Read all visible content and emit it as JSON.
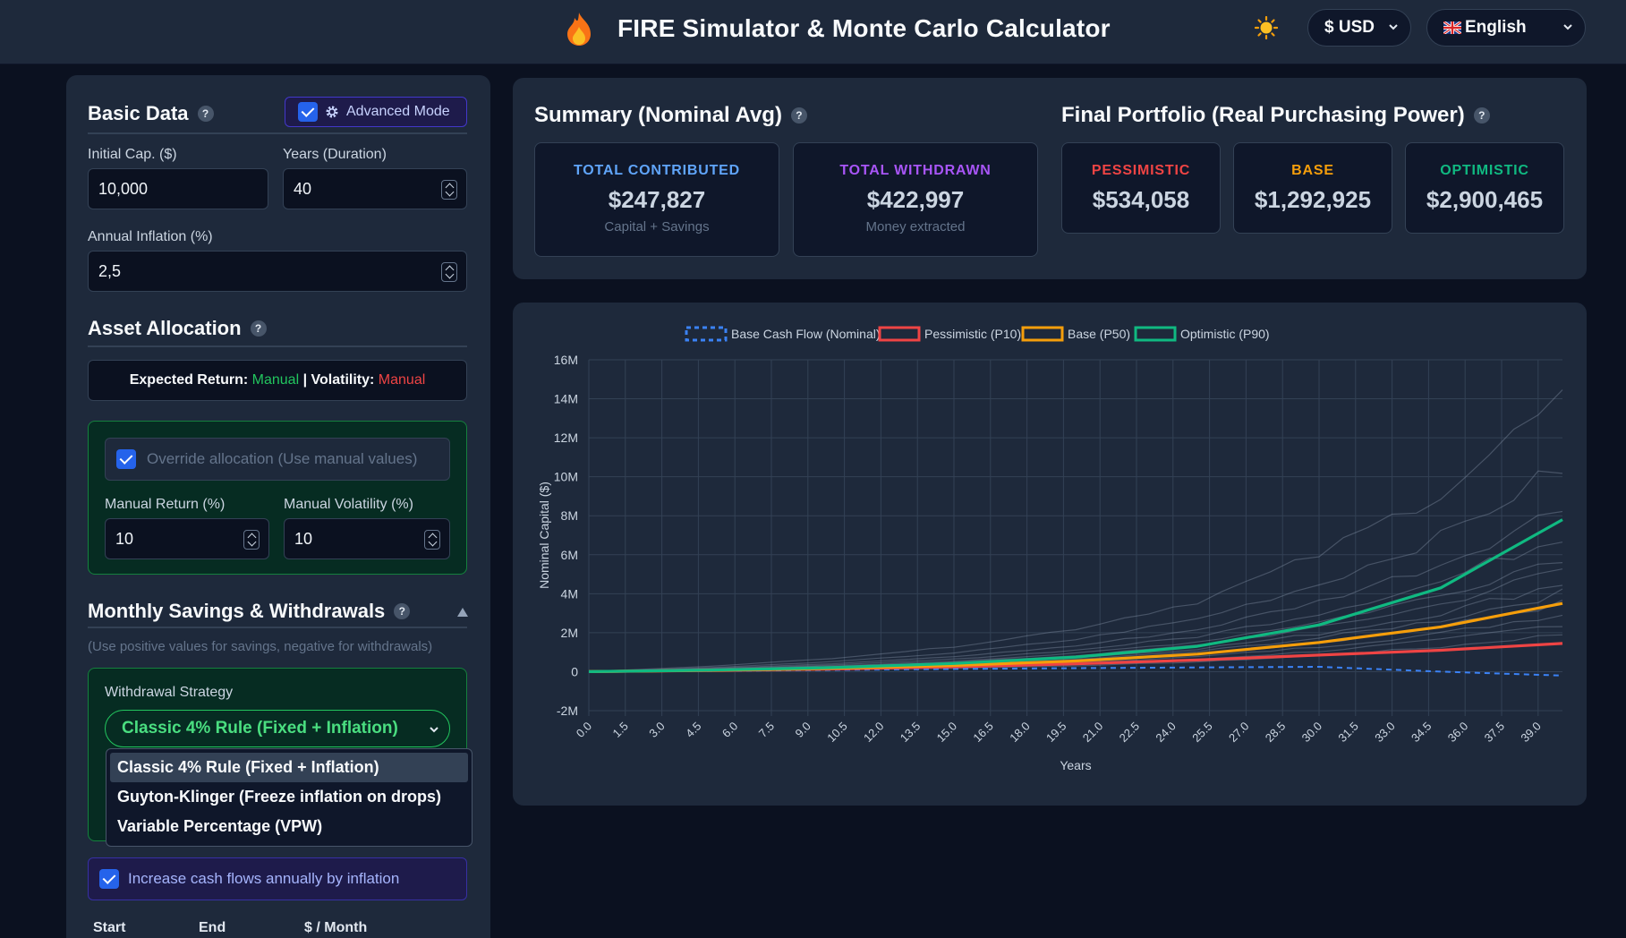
{
  "header": {
    "title": "FIRE Simulator & Monte Carlo Calculator",
    "currency": "$ USD",
    "language": "English"
  },
  "basic": {
    "title": "Basic Data",
    "advanced_label": "Advanced Mode",
    "initial_cap_label": "Initial Cap. ($)",
    "initial_cap_value": "10,000",
    "years_label": "Years (Duration)",
    "years_value": "40",
    "inflation_label": "Annual Inflation (%)",
    "inflation_value": "2,5"
  },
  "allocation": {
    "title": "Asset Allocation",
    "expected_return_label": "Expected Return:",
    "expected_return_value": "Manual",
    "volatility_label": "Volatility:",
    "volatility_value": "Manual",
    "separator": "|",
    "override_label": "Override allocation (Use manual values)",
    "manual_return_label": "Manual Return (%)",
    "manual_return_value": "10",
    "manual_volatility_label": "Manual Volatility (%)",
    "manual_volatility_value": "10"
  },
  "savings": {
    "title": "Monthly Savings & Withdrawals",
    "hint": "(Use positive values for savings, negative for withdrawals)",
    "strategy_label": "Withdrawal Strategy",
    "strategy_selected": "Classic 4% Rule (Fixed + Inflation)",
    "strategy_options": [
      "Classic 4% Rule (Fixed + Inflation)",
      "Guyton-Klinger (Freeze inflation on drops)",
      "Variable Percentage (VPW)"
    ],
    "inflation_toggle_label": "Increase cash flows annually by inflation",
    "columns": [
      "Start",
      "End",
      "$ / Month"
    ]
  },
  "summary": {
    "title": "Summary (Nominal Avg)",
    "contributed_label": "TOTAL CONTRIBUTED",
    "contributed_value": "$247,827",
    "contributed_sub": "Capital + Savings",
    "withdrawn_label": "TOTAL WITHDRAWN",
    "withdrawn_value": "$422,997",
    "withdrawn_sub": "Money extracted"
  },
  "final": {
    "title": "Final Portfolio (Real Purchasing Power)",
    "pessimistic_label": "PESSIMISTIC",
    "pessimistic_value": "$534,058",
    "base_label": "BASE",
    "base_value": "$1,292,925",
    "optimistic_label": "OPTIMISTIC",
    "optimistic_value": "$2,900,465"
  },
  "colors": {
    "cashflow": "#3b82f6",
    "pessimistic": "#ef4444",
    "base": "#f59e0b",
    "optimistic": "#10b981",
    "contributed": "#60a5fa",
    "withdrawn": "#a855f7"
  },
  "chart_data": {
    "type": "line",
    "xlabel": "Years",
    "ylabel": "Nominal Capital ($)",
    "ylim": [
      -2000000,
      16000000
    ],
    "y_ticks": [
      "16M",
      "14M",
      "12M",
      "10M",
      "8M",
      "6M",
      "4M",
      "2M",
      "0",
      "-2M"
    ],
    "x_ticks": [
      "0.0",
      "1.5",
      "3.0",
      "4.5",
      "6.0",
      "7.5",
      "9.0",
      "10.5",
      "12.0",
      "13.5",
      "15.0",
      "16.5",
      "18.0",
      "19.5",
      "21.0",
      "22.5",
      "24.0",
      "25.5",
      "27.0",
      "28.5",
      "30.0",
      "31.5",
      "33.0",
      "34.5",
      "36.0",
      "37.5",
      "39.0"
    ],
    "x": [
      0,
      5,
      10,
      15,
      20,
      25,
      30,
      35,
      40
    ],
    "legend": [
      "Base Cash Flow (Nominal)",
      "Pessimistic (P10)",
      "Base (P50)",
      "Optimistic (P90)"
    ],
    "series": [
      {
        "name": "Base Cash Flow (Nominal)",
        "values": [
          0,
          40000,
          90000,
          140000,
          180000,
          220000,
          250000,
          0,
          -200000
        ]
      },
      {
        "name": "Pessimistic (P10)",
        "values": [
          0,
          60000,
          140000,
          250000,
          400000,
          600000,
          850000,
          1100000,
          1450000
        ]
      },
      {
        "name": "Base (P50)",
        "values": [
          0,
          70000,
          170000,
          320000,
          550000,
          900000,
          1500000,
          2300000,
          3500000
        ]
      },
      {
        "name": "Optimistic (P90)",
        "values": [
          0,
          80000,
          210000,
          420000,
          750000,
          1300000,
          2400000,
          4300000,
          7800000
        ]
      }
    ]
  }
}
